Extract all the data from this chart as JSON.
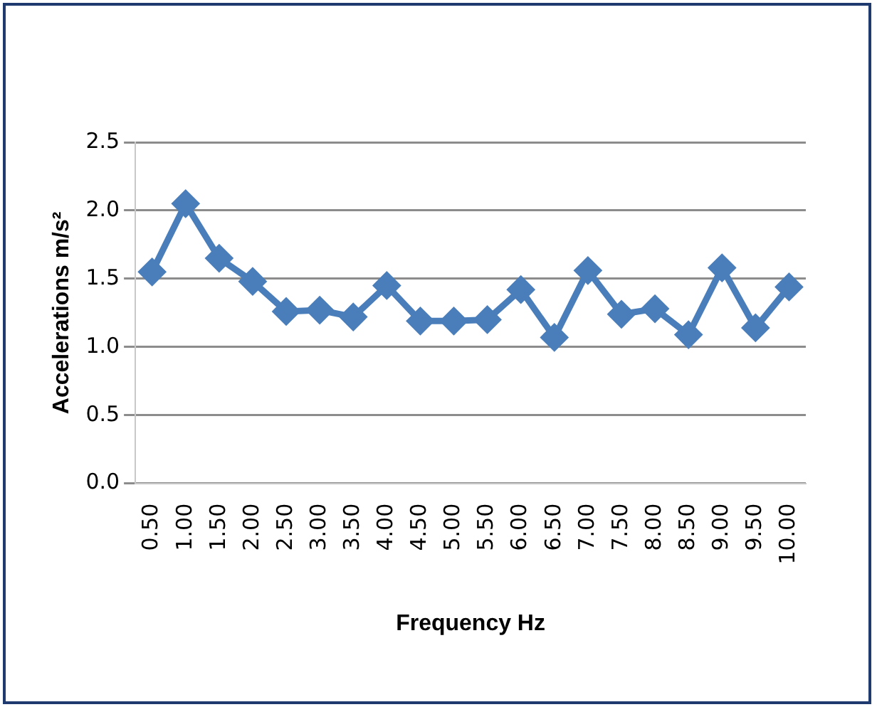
{
  "chart_data": {
    "type": "line",
    "xlabel": "Frequency Hz",
    "ylabel": "Accelerations m/s²",
    "categories": [
      "0.50",
      "1.00",
      "1.50",
      "2.00",
      "2.50",
      "3.00",
      "3.50",
      "4.00",
      "4.50",
      "5.00",
      "5.50",
      "6.00",
      "6.50",
      "7.00",
      "7.50",
      "8.00",
      "8.50",
      "9.00",
      "9.50",
      "10.00"
    ],
    "series": [
      {
        "color": "#4a7ebb",
        "values": [
          1.55,
          2.05,
          1.65,
          1.48,
          1.26,
          1.27,
          1.22,
          1.45,
          1.19,
          1.19,
          1.2,
          1.42,
          1.07,
          1.56,
          1.24,
          1.28,
          1.09,
          1.58,
          1.14,
          1.44
        ]
      }
    ],
    "ylim": [
      0,
      2.5
    ],
    "yticks": [
      {
        "value": 0,
        "label": "0.0"
      },
      {
        "value": 0.5,
        "label": "0.5"
      },
      {
        "value": 1,
        "label": "1.0"
      },
      {
        "value": 1.5,
        "label": "1.5"
      },
      {
        "value": 2,
        "label": "2.0"
      },
      {
        "value": 2.5,
        "label": "2.5"
      }
    ],
    "grid": "y",
    "legend": false,
    "marker": "diamond",
    "line_style": "solid"
  }
}
